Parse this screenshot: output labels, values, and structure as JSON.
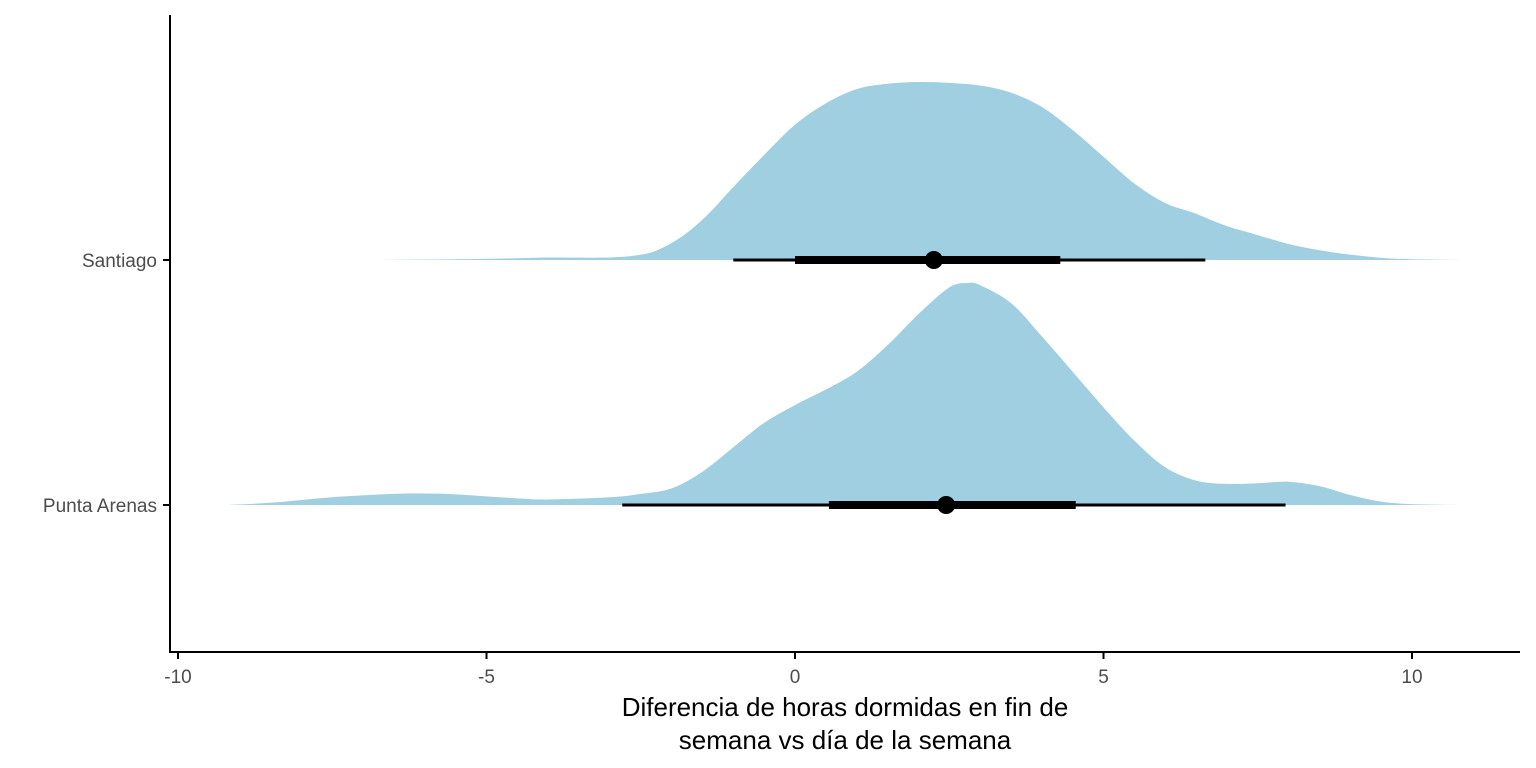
{
  "chart_data": {
    "type": "halfeye",
    "title": "",
    "xlabel_lines": [
      "Diferencia de horas dormidas en fin de",
      "semana vs día de la semana"
    ],
    "ylabel": "",
    "xlim": [
      -10.1,
      11.7
    ],
    "x_ticks": [
      -10,
      -5,
      0,
      5,
      10
    ],
    "x_tick_labels": [
      "-10",
      "-5",
      "0",
      "5",
      "10"
    ],
    "grid": false,
    "legend": "none",
    "fill_color": "#9fcfe0",
    "interval_color": "#000000",
    "categories": [
      "Santiago",
      "Punta Arenas"
    ],
    "series": [
      {
        "name": "Santiago",
        "point": 2.25,
        "interval_66": [
          0.0,
          4.3
        ],
        "interval_95": [
          -1.0,
          6.65
        ],
        "density": [
          [
            -6.7,
            0.0
          ],
          [
            -5.5,
            0.004
          ],
          [
            -4.5,
            0.01
          ],
          [
            -4.0,
            0.014
          ],
          [
            -3.0,
            0.014
          ],
          [
            -2.5,
            0.03
          ],
          [
            -2.2,
            0.06
          ],
          [
            -1.8,
            0.14
          ],
          [
            -1.4,
            0.26
          ],
          [
            -1.0,
            0.41
          ],
          [
            -0.5,
            0.59
          ],
          [
            0.0,
            0.76
          ],
          [
            0.5,
            0.88
          ],
          [
            1.0,
            0.96
          ],
          [
            1.5,
            0.99
          ],
          [
            2.0,
            1.0
          ],
          [
            2.5,
            0.995
          ],
          [
            3.0,
            0.98
          ],
          [
            3.5,
            0.94
          ],
          [
            4.0,
            0.86
          ],
          [
            4.5,
            0.73
          ],
          [
            5.0,
            0.58
          ],
          [
            5.5,
            0.43
          ],
          [
            6.0,
            0.32
          ],
          [
            6.5,
            0.26
          ],
          [
            7.0,
            0.19
          ],
          [
            7.5,
            0.14
          ],
          [
            8.0,
            0.09
          ],
          [
            8.5,
            0.055
          ],
          [
            9.0,
            0.03
          ],
          [
            9.5,
            0.012
          ],
          [
            10.0,
            0.004
          ],
          [
            10.8,
            0.0
          ]
        ]
      },
      {
        "name": "Punta Arenas",
        "point": 2.45,
        "interval_66": [
          0.55,
          4.55
        ],
        "interval_95": [
          -2.8,
          7.95
        ],
        "density": [
          [
            -9.2,
            0.0
          ],
          [
            -8.5,
            0.01
          ],
          [
            -7.5,
            0.035
          ],
          [
            -6.5,
            0.05
          ],
          [
            -6.0,
            0.052
          ],
          [
            -5.5,
            0.048
          ],
          [
            -4.5,
            0.03
          ],
          [
            -4.0,
            0.025
          ],
          [
            -3.0,
            0.035
          ],
          [
            -2.5,
            0.05
          ],
          [
            -2.0,
            0.075
          ],
          [
            -1.5,
            0.15
          ],
          [
            -1.0,
            0.26
          ],
          [
            -0.5,
            0.37
          ],
          [
            0.0,
            0.45
          ],
          [
            0.5,
            0.52
          ],
          [
            1.0,
            0.6
          ],
          [
            1.5,
            0.72
          ],
          [
            2.0,
            0.86
          ],
          [
            2.5,
            0.98
          ],
          [
            2.8,
            1.0
          ],
          [
            3.0,
            0.99
          ],
          [
            3.5,
            0.91
          ],
          [
            4.0,
            0.76
          ],
          [
            4.5,
            0.6
          ],
          [
            5.0,
            0.44
          ],
          [
            5.5,
            0.29
          ],
          [
            6.0,
            0.17
          ],
          [
            6.5,
            0.11
          ],
          [
            7.0,
            0.095
          ],
          [
            7.5,
            0.098
          ],
          [
            8.0,
            0.105
          ],
          [
            8.5,
            0.085
          ],
          [
            9.0,
            0.045
          ],
          [
            9.5,
            0.015
          ],
          [
            10.0,
            0.004
          ],
          [
            10.8,
            0.0
          ]
        ]
      }
    ]
  }
}
